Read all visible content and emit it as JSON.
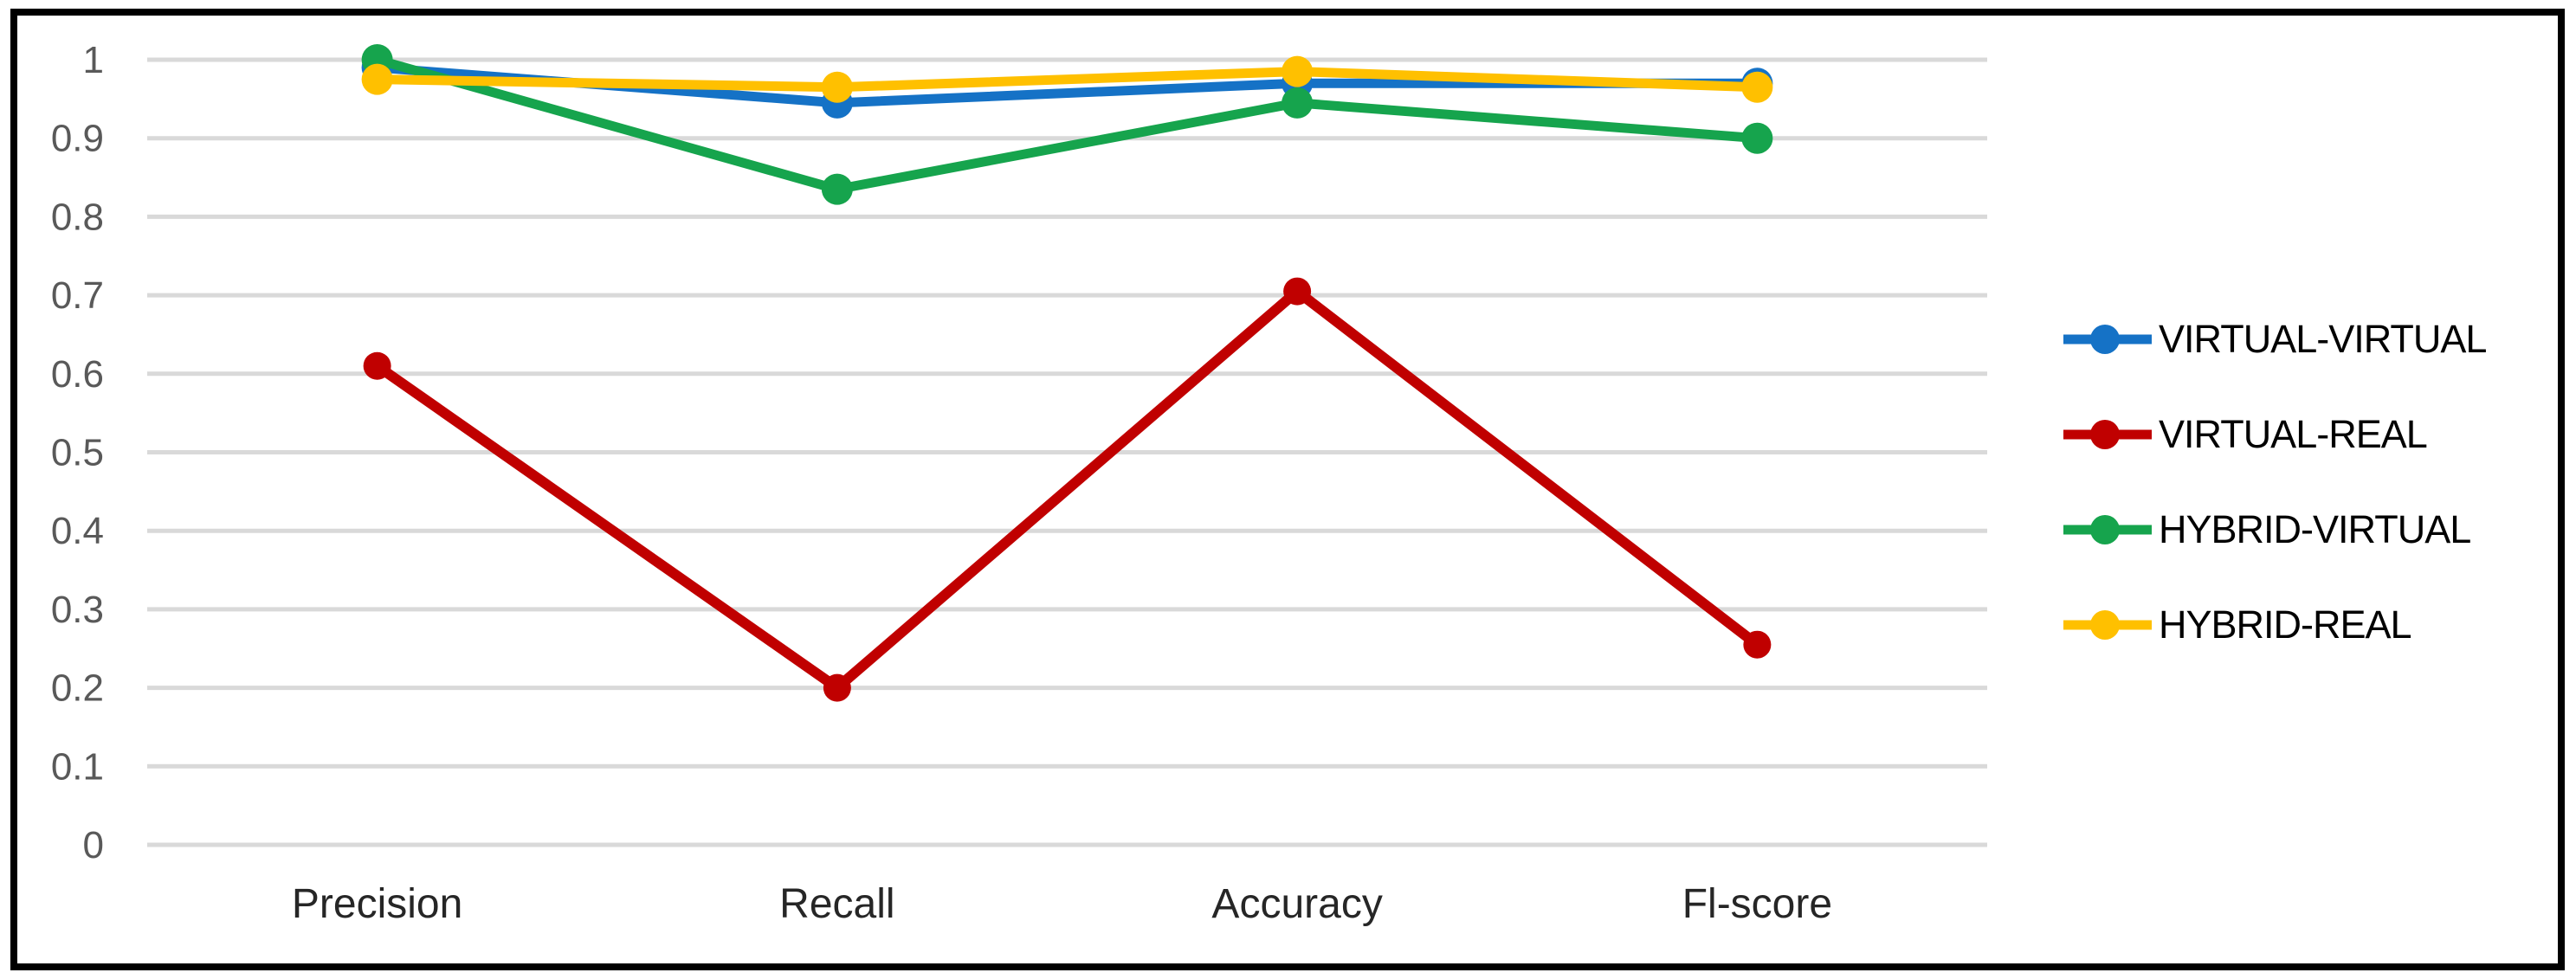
{
  "chart_data": {
    "type": "line",
    "title": "",
    "xlabel": "",
    "ylabel": "",
    "categories": [
      "Precision",
      "Recall",
      "Accuracy",
      "Fl-score"
    ],
    "series": [
      {
        "name": "VIRTUAL-VIRTUAL",
        "color": "#1572C6",
        "values": [
          0.99,
          0.945,
          0.97,
          0.97
        ]
      },
      {
        "name": "VIRTUAL-REAL",
        "color": "#C00000",
        "values": [
          0.61,
          0.2,
          0.705,
          0.255
        ]
      },
      {
        "name": "HYBRID-VIRTUAL",
        "color": "#16A44D",
        "values": [
          1.0,
          0.835,
          0.945,
          0.9
        ]
      },
      {
        "name": "HYBRID-REAL",
        "color": "#FFC000",
        "values": [
          0.975,
          0.965,
          0.985,
          0.965
        ]
      }
    ],
    "y_axis": {
      "tick_labels": [
        "1",
        "0.9",
        "0.8",
        "0.7",
        "0.6",
        "0.5",
        "0.4",
        "0.3",
        "0.2",
        "0.1",
        "0"
      ],
      "min": 0,
      "max": 1
    },
    "ylim": [
      0,
      1
    ],
    "grid": true,
    "legend_position": "right"
  },
  "styles": {
    "gridline_color": "#D9D9D9",
    "y_label_color": "#595959",
    "x_label_color": "#262626",
    "legend_text_color": "#000000",
    "frame_color": "#000000",
    "background_color": "#FFFFFF"
  }
}
